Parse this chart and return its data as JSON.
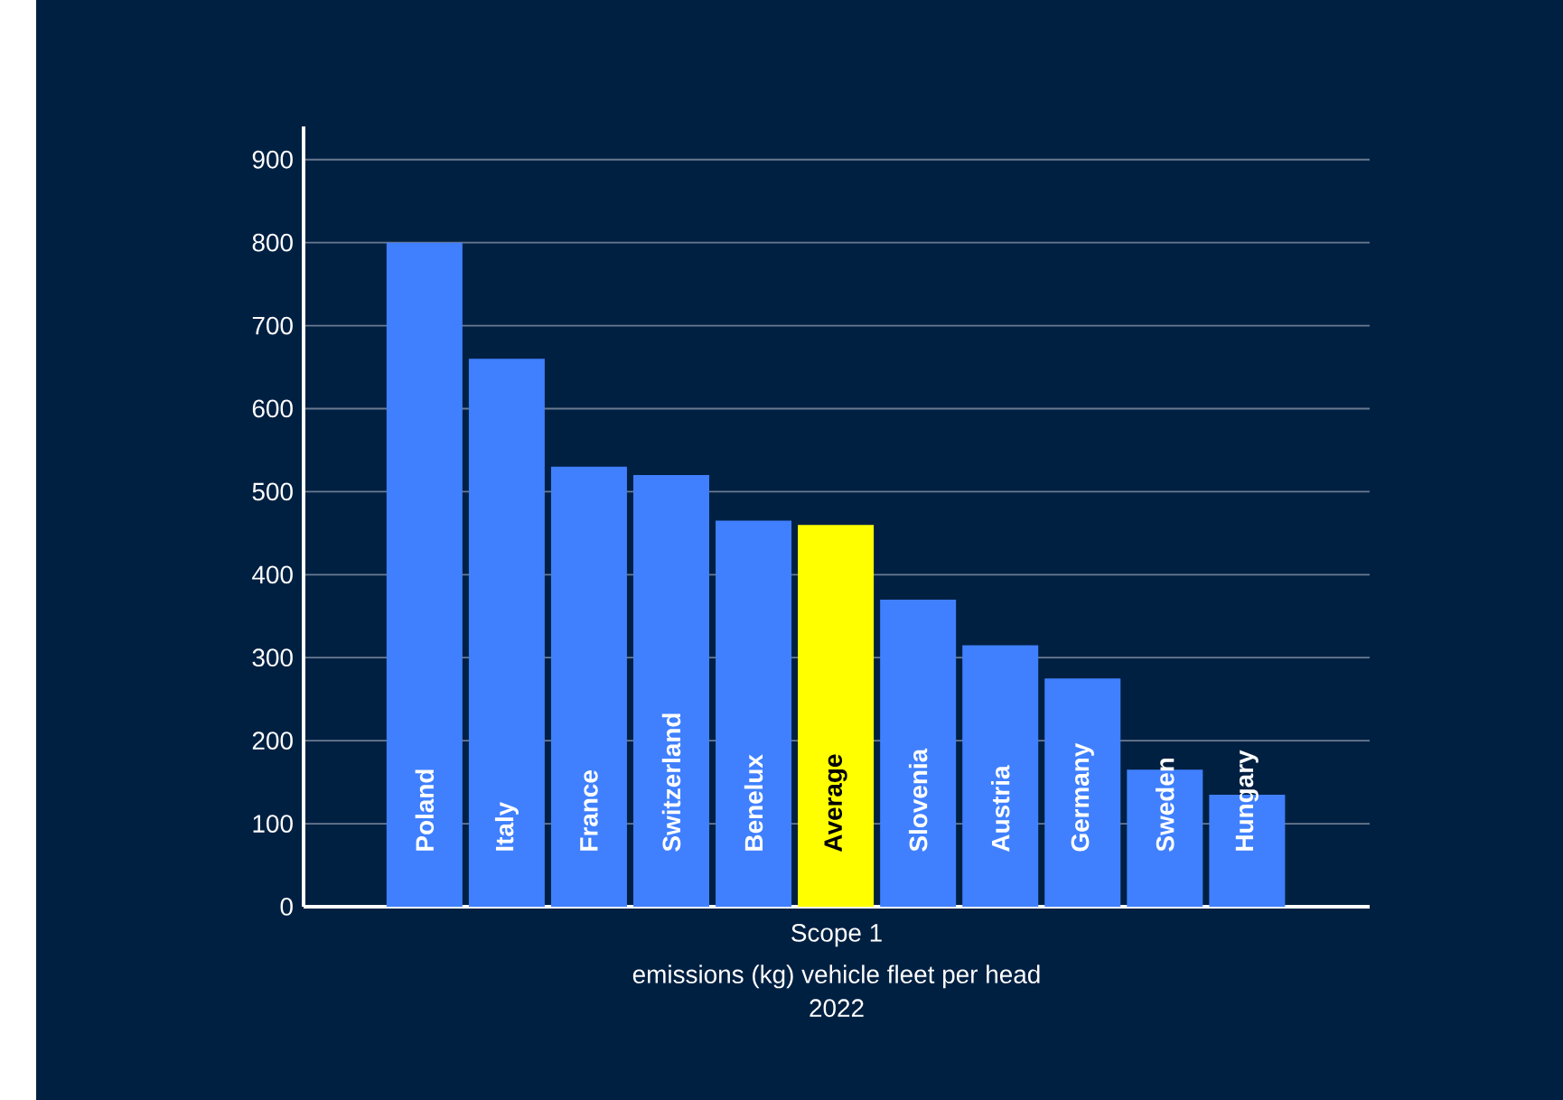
{
  "chart_data": {
    "type": "bar",
    "categories": [
      "Poland",
      "Italy",
      "France",
      "Switzerland",
      "Benelux",
      "Average",
      "Slovenia",
      "Austria",
      "Germany",
      "Sweden",
      "Hungary"
    ],
    "values": [
      800,
      660,
      530,
      520,
      465,
      460,
      370,
      315,
      275,
      165,
      135
    ],
    "colors": [
      "#4080ff",
      "#4080ff",
      "#4080ff",
      "#4080ff",
      "#4080ff",
      "#ffff00",
      "#4080ff",
      "#4080ff",
      "#4080ff",
      "#4080ff",
      "#4080ff"
    ],
    "ylim": [
      0,
      940
    ],
    "yticks": [
      0,
      100,
      200,
      300,
      400,
      500,
      600,
      700,
      800,
      900
    ],
    "grid": "y",
    "xlabel": "Scope 1",
    "annotations": [
      "emissions (kg) vehicle fleet per head",
      "2022"
    ]
  }
}
